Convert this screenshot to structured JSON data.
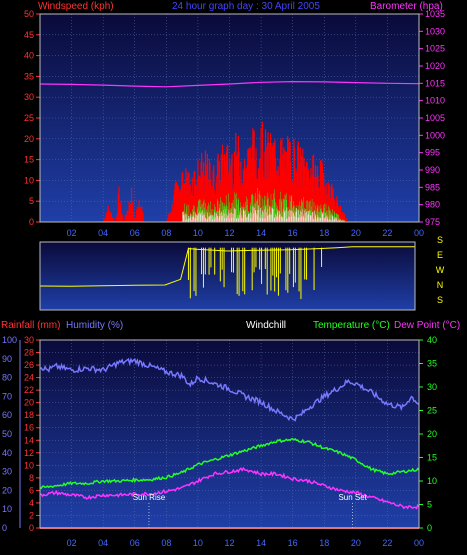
{
  "header_top": {
    "windspeed_label": "Windspeed (kph)",
    "graph_title": "24 hour graph day : 30 April 2005",
    "barometer_label": "Barometer (hpa)"
  },
  "header_bottom": {
    "rainfall_label": "Rainfall (mm)",
    "humidity_label": "Humidity (%)",
    "windchill_label": "Windchill",
    "temperature_label": "Temperature (°C)",
    "dewpoint_label": "Dew Point (°C)"
  },
  "annotations": {
    "sunrise": "Sun Rise",
    "sunset": "Sun Set"
  },
  "colors": {
    "windspeed": "#ff0000",
    "barometer": "#ff33ff",
    "title": "#4444ff",
    "rainfall": "#ff3333",
    "humidity": "#7777ff",
    "windchill": "#ffffff",
    "temperature": "#22ff22",
    "dewpoint": "#ff33ff",
    "direction": "#ffff00",
    "plot_bg_top": "#0a0a3a",
    "plot_bg_bottom": "#1f3fa8"
  },
  "chart_data": [
    {
      "type": "area",
      "title": "24 hour graph day : 30 April 2005",
      "x_ticks": [
        "02",
        "04",
        "06",
        "08",
        "10",
        "12",
        "14",
        "16",
        "18",
        "20",
        "22",
        "00"
      ],
      "y_left": {
        "label": "Windspeed (kph)",
        "range": [
          0,
          50
        ],
        "ticks": [
          0,
          5,
          10,
          15,
          20,
          25,
          30,
          35,
          40,
          45,
          50
        ]
      },
      "y_right": {
        "label": "Barometer (hpa)",
        "range": [
          975,
          1035
        ],
        "ticks": [
          975,
          980,
          985,
          990,
          995,
          1000,
          1005,
          1010,
          1015,
          1020,
          1025,
          1030,
          1035
        ]
      },
      "grid": true,
      "series": [
        {
          "name": "Windspeed (kph)",
          "x": [
            0.5,
            1,
            1.5,
            2,
            2.5,
            3,
            3.5,
            4,
            4.3,
            4.8,
            5,
            5.3,
            5.8,
            6,
            6.3,
            6.6,
            7,
            7.5,
            8,
            8.4,
            8.6,
            9,
            9.5,
            10,
            10.5,
            11,
            11.5,
            12,
            12.5,
            13,
            13.5,
            14,
            14.5,
            15,
            15.5,
            16,
            16.5,
            17,
            17.5,
            18,
            18.3,
            18.6,
            19,
            19.5,
            20,
            21,
            22,
            23,
            24
          ],
          "values": [
            0,
            0,
            0,
            0,
            0,
            0,
            0,
            0,
            3,
            0,
            6,
            0,
            6,
            0,
            6,
            0,
            0,
            0,
            0,
            4,
            7,
            10,
            9,
            11,
            12,
            10,
            13,
            14,
            15,
            13,
            16,
            17,
            15,
            16,
            14,
            15,
            13,
            12,
            11,
            10,
            8,
            6,
            3,
            0,
            0,
            0,
            0,
            0,
            0
          ]
        },
        {
          "name": "Barometer (hpa)",
          "x": [
            0,
            2,
            4,
            6,
            8,
            10,
            12,
            14,
            16,
            18,
            20,
            22,
            24
          ],
          "values": [
            1014.8,
            1014.7,
            1014.5,
            1014.2,
            1014.0,
            1014.4,
            1014.8,
            1015.3,
            1015.5,
            1015.4,
            1015.2,
            1015.0,
            1014.9
          ]
        }
      ]
    },
    {
      "type": "line",
      "title": "",
      "x_ticks": [],
      "y_labels": [
        "S",
        "E",
        "W",
        "N",
        "S"
      ],
      "series": [
        {
          "name": "",
          "x": [
            0,
            2,
            4,
            6,
            8,
            9,
            9.5,
            10,
            12,
            14,
            16,
            18,
            19,
            20,
            22,
            24
          ],
          "values": [
            120,
            118,
            122,
            124,
            126,
            160,
            345,
            340,
            330,
            335,
            338,
            345,
            350,
            355,
            355,
            355
          ]
        }
      ]
    },
    {
      "type": "line",
      "title": "",
      "x_ticks": [
        "02",
        "04",
        "06",
        "08",
        "10",
        "12",
        "14",
        "16",
        "18",
        "20",
        "22",
        "00"
      ],
      "y_rainfall": {
        "label": "Rainfall (mm)",
        "range": [
          0,
          30
        ],
        "ticks": [
          0,
          2,
          4,
          6,
          8,
          10,
          12,
          14,
          16,
          18,
          20,
          22,
          24,
          26,
          28,
          30
        ]
      },
      "y_humidity": {
        "label": "Humidity (%)",
        "range": [
          0,
          100
        ],
        "ticks": [
          0,
          10,
          20,
          30,
          40,
          50,
          60,
          70,
          80,
          90,
          100
        ]
      },
      "y_temperature": {
        "label": "Temperature (°C)",
        "range": [
          0,
          40
        ],
        "ticks": [
          0,
          5,
          10,
          15,
          20,
          25,
          30,
          35,
          40
        ]
      },
      "grid": true,
      "series": [
        {
          "name": "Humidity (%)",
          "x": [
            0,
            0.5,
            1,
            2,
            3,
            4,
            5,
            6,
            7,
            8,
            9,
            9.5,
            10,
            11,
            12,
            13,
            14,
            15,
            15.5,
            16,
            16.5,
            17,
            18,
            19,
            19.5,
            20,
            21,
            22,
            23,
            23.5,
            24
          ],
          "values": [
            86,
            84,
            86,
            84,
            85,
            84,
            88,
            89,
            86,
            83,
            81,
            76,
            80,
            77,
            74,
            70,
            67,
            62,
            60,
            58,
            60,
            64,
            70,
            75,
            78,
            77,
            72,
            66,
            64,
            70,
            66
          ]
        },
        {
          "name": "Temperature (°C)",
          "x": [
            0,
            1,
            2,
            3,
            4,
            5,
            6,
            7,
            8,
            9,
            10,
            11,
            12,
            13,
            14,
            15,
            16,
            17,
            18,
            19,
            20,
            21,
            22,
            23,
            24
          ],
          "values": [
            8.5,
            9,
            9.5,
            9.5,
            10,
            10,
            10.2,
            10.3,
            10.8,
            11.8,
            13.5,
            14.5,
            15.5,
            16.5,
            17.5,
            18.5,
            18.8,
            18.3,
            17,
            16,
            14.5,
            12.5,
            11.5,
            12,
            12.5
          ]
        },
        {
          "name": "Dew Point (°C)",
          "x": [
            0,
            1,
            2,
            3,
            4,
            5,
            6,
            7,
            8,
            9,
            10,
            11,
            12,
            13,
            14,
            15,
            16,
            17,
            18,
            19,
            20,
            21,
            22,
            23,
            24
          ],
          "values": [
            7,
            7.5,
            7,
            6.5,
            7,
            7,
            7.2,
            7.3,
            7.8,
            8.5,
            10,
            11.5,
            12,
            12.5,
            11.5,
            11.5,
            10.5,
            10,
            9,
            8,
            7.5,
            6.5,
            5.5,
            4.5,
            4.5
          ]
        },
        {
          "name": "Rainfall (mm)",
          "x": [
            0,
            24
          ],
          "values": [
            0,
            0
          ]
        }
      ],
      "markers": [
        {
          "label": "Sun Rise",
          "x": 6.9
        },
        {
          "label": "Sun Set",
          "x": 19.8
        }
      ]
    }
  ]
}
